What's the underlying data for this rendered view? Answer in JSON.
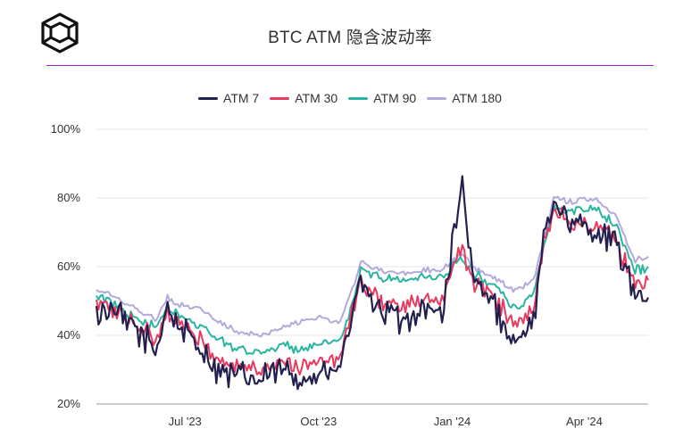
{
  "header": {
    "title": "BTC ATM 隐含波动率",
    "logo_icon": "cube-logo-icon",
    "rule_color": "#a020c8"
  },
  "chart_data": {
    "type": "line",
    "title": "BTC ATM 隐含波动率",
    "xlabel": "",
    "ylabel": "",
    "x_range": [
      "2023-05-01",
      "2024-05-15"
    ],
    "x_ticks": [
      {
        "label": "Jul '23",
        "date": "2023-07-01"
      },
      {
        "label": "Oct '23",
        "date": "2023-10-01"
      },
      {
        "label": "Jan '24",
        "date": "2024-01-01"
      },
      {
        "label": "Apr '24",
        "date": "2024-04-01"
      }
    ],
    "y_ticks": [
      "20%",
      "40%",
      "60%",
      "80%",
      "100%"
    ],
    "ylim": [
      20,
      100
    ],
    "grid": true,
    "legend_position": "top-center",
    "x": [
      "2023-05-01",
      "2023-05-15",
      "2023-05-29",
      "2023-06-12",
      "2023-06-19",
      "2023-06-26",
      "2023-07-10",
      "2023-07-24",
      "2023-08-07",
      "2023-08-21",
      "2023-09-04",
      "2023-09-18",
      "2023-10-02",
      "2023-10-16",
      "2023-10-23",
      "2023-10-30",
      "2023-11-13",
      "2023-11-27",
      "2023-12-11",
      "2023-12-25",
      "2024-01-08",
      "2024-01-15",
      "2024-01-29",
      "2024-02-12",
      "2024-02-26",
      "2024-03-04",
      "2024-03-11",
      "2024-03-25",
      "2024-04-08",
      "2024-04-22",
      "2024-05-06",
      "2024-05-15"
    ],
    "series": [
      {
        "name": "ATM 7",
        "color": "#22204e",
        "values": [
          46,
          47,
          41,
          36,
          49,
          43,
          37,
          30,
          28,
          27,
          30,
          28,
          28,
          30,
          44,
          54,
          48,
          44,
          48,
          46,
          85,
          56,
          50,
          38,
          45,
          66,
          80,
          72,
          70,
          66,
          53,
          51
        ]
      },
      {
        "name": "ATM 30",
        "color": "#e8395e",
        "values": [
          49,
          47,
          43,
          39,
          47,
          44,
          39,
          33,
          31,
          30,
          33,
          31,
          32,
          33,
          45,
          55,
          50,
          48,
          50,
          50,
          66,
          56,
          52,
          43,
          48,
          66,
          77,
          72,
          72,
          68,
          55,
          56
        ]
      },
      {
        "name": "ATM 90",
        "color": "#2bb5a0",
        "values": [
          51,
          49,
          45,
          42,
          48,
          46,
          43,
          39,
          36,
          35,
          37,
          36,
          37,
          38,
          47,
          59,
          57,
          56,
          57,
          57,
          63,
          58,
          55,
          48,
          52,
          66,
          77,
          76,
          77,
          72,
          59,
          60
        ]
      },
      {
        "name": "ATM 180",
        "color": "#b4a8dc",
        "values": [
          53,
          51,
          47,
          45,
          51,
          49,
          48,
          44,
          41,
          40,
          42,
          44,
          45,
          44,
          52,
          61,
          59,
          58,
          59,
          59,
          64,
          60,
          57,
          53,
          56,
          68,
          80,
          79,
          80,
          75,
          62,
          63
        ]
      }
    ]
  }
}
